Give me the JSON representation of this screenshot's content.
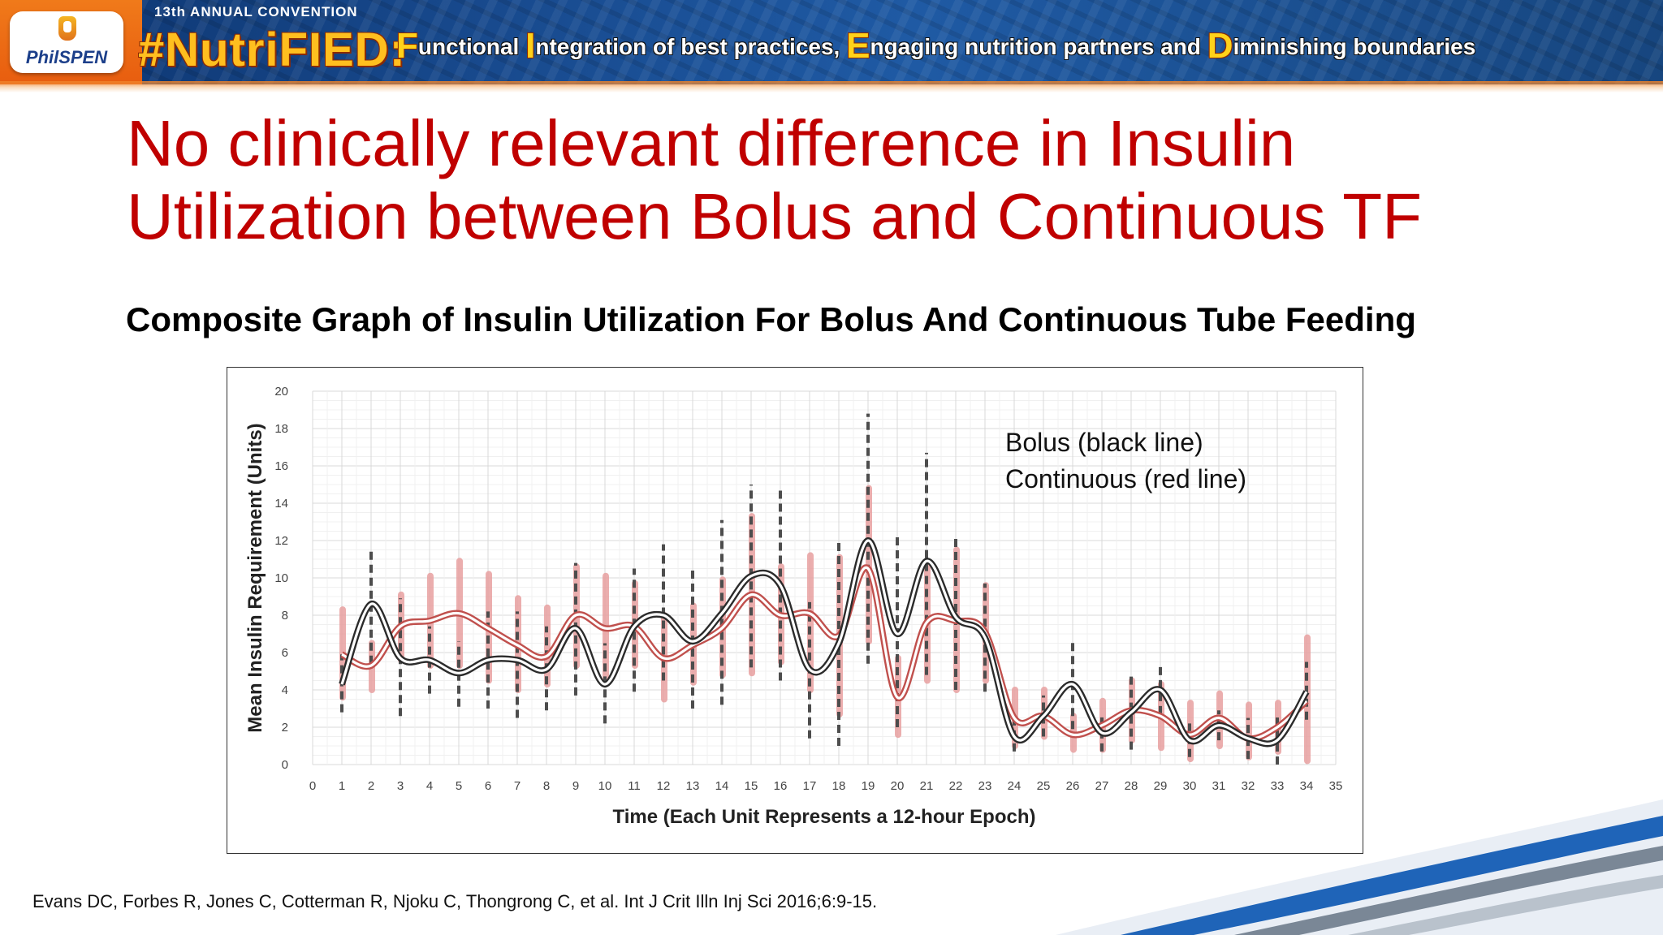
{
  "banner": {
    "logo_text": "PhilSPEN",
    "convention": "13th ANNUAL CONVENTION",
    "hashtag": "#NutriFIED:",
    "tagline": [
      {
        "initial": "F",
        "rest": "unctional "
      },
      {
        "initial": "I",
        "rest": "ntegration of best practices, "
      },
      {
        "initial": "E",
        "rest": "ngaging nutrition partners and "
      },
      {
        "initial": "D",
        "rest": "iminishing boundaries"
      }
    ]
  },
  "slide": {
    "title_line1": "No clinically relevant difference in Insulin",
    "title_line2": "Utilization between Bolus and Continuous TF",
    "subtitle": "Composite Graph of Insulin Utilization For Bolus And Continuous Tube Feeding",
    "citation": "Evans DC, Forbes R, Jones C, Cotterman R, Njoku C, Thongrong C, et al. Int J Crit Illn Inj Sci 2016;6:9-15."
  },
  "colors": {
    "title": "#c00000",
    "bolus": "#2b2b2b",
    "continuous": "#c0504d",
    "continuous_bar": "#e8a0a0",
    "bolus_dash": "#4d4d4d"
  },
  "chart_data": {
    "type": "line",
    "title": "",
    "xlabel": "Time (Each Unit Represents a 12-hour Epoch)",
    "ylabel": "Mean Insulin Requirement (Units)",
    "xlim": [
      0,
      35
    ],
    "ylim": [
      0,
      20
    ],
    "xticks": [
      0,
      1,
      2,
      3,
      4,
      5,
      6,
      7,
      8,
      9,
      10,
      11,
      12,
      13,
      14,
      15,
      16,
      17,
      18,
      19,
      20,
      21,
      22,
      23,
      24,
      25,
      26,
      27,
      28,
      29,
      30,
      31,
      32,
      33,
      34,
      35
    ],
    "yticks": [
      0,
      2,
      4,
      6,
      8,
      10,
      12,
      14,
      16,
      18,
      20
    ],
    "grid": true,
    "legend_lines": [
      "Bolus (black line)",
      "Continuous (red line)"
    ],
    "legend_position": "top-right",
    "x": [
      1,
      2,
      3,
      4,
      5,
      6,
      7,
      8,
      9,
      10,
      11,
      12,
      13,
      14,
      15,
      16,
      17,
      18,
      19,
      20,
      21,
      22,
      23,
      24,
      25,
      26,
      27,
      28,
      29,
      30,
      31,
      32,
      33,
      34
    ],
    "series": [
      {
        "name": "Bolus",
        "values": [
          4.3,
          8.6,
          5.7,
          5.6,
          4.9,
          5.6,
          5.6,
          5.1,
          7.3,
          4.3,
          7.4,
          8.0,
          6.6,
          8.1,
          10.1,
          9.6,
          5.1,
          6.5,
          12.0,
          7.0,
          10.9,
          7.9,
          6.8,
          1.5,
          2.6,
          4.3,
          1.7,
          2.8,
          4.0,
          1.3,
          2.1,
          1.4,
          1.3,
          3.9
        ],
        "range_low": [
          2.8,
          5.4,
          2.6,
          3.8,
          3.1,
          3.0,
          2.5,
          2.9,
          3.7,
          2.2,
          3.9,
          4.5,
          3.0,
          3.2,
          5.2,
          4.5,
          1.4,
          1.0,
          5.4,
          2.0,
          4.8,
          4.0,
          3.9,
          0.7,
          1.5,
          1.9,
          0.7,
          0.8,
          2.7,
          0.4,
          1.3,
          0.3,
          0.0,
          2.4
        ],
        "range_high": [
          5.9,
          11.6,
          8.9,
          7.4,
          6.6,
          8.2,
          8.2,
          7.4,
          10.8,
          6.5,
          10.5,
          11.8,
          10.5,
          13.1,
          15.0,
          14.8,
          8.7,
          12.0,
          18.8,
          12.3,
          16.7,
          12.1,
          9.7,
          2.3,
          3.7,
          6.7,
          2.7,
          4.8,
          5.3,
          2.2,
          2.9,
          2.5,
          2.7,
          5.5
        ]
      },
      {
        "name": "Continuous",
        "values": [
          5.9,
          5.3,
          7.4,
          7.7,
          8.1,
          7.3,
          6.4,
          5.8,
          8.0,
          7.3,
          7.4,
          5.7,
          6.4,
          7.3,
          9.1,
          8.0,
          8.1,
          6.9,
          10.5,
          3.6,
          7.6,
          7.7,
          7.1,
          2.5,
          2.6,
          1.6,
          2.1,
          2.9,
          2.6,
          1.6,
          2.5,
          1.4,
          2.0,
          3.4
        ],
        "range_low": [
          3.6,
          4.0,
          5.6,
          5.3,
          5.3,
          4.5,
          4.0,
          4.3,
          5.3,
          4.5,
          5.3,
          3.5,
          4.4,
          4.8,
          4.9,
          5.5,
          4.0,
          2.7,
          6.6,
          1.6,
          4.5,
          4.0,
          4.5,
          1.0,
          1.5,
          0.8,
          0.8,
          1.3,
          0.9,
          0.3,
          1.0,
          0.4,
          0.7,
          0.2
        ],
        "range_high": [
          8.3,
          6.5,
          9.1,
          10.1,
          10.9,
          10.2,
          8.9,
          8.4,
          10.6,
          10.1,
          9.7,
          8.0,
          8.5,
          9.9,
          13.3,
          10.6,
          11.2,
          11.1,
          14.8,
          5.7,
          10.8,
          11.5,
          9.6,
          4.0,
          4.0,
          2.6,
          3.4,
          4.5,
          4.3,
          3.3,
          3.8,
          3.2,
          3.3,
          6.8
        ]
      }
    ]
  }
}
